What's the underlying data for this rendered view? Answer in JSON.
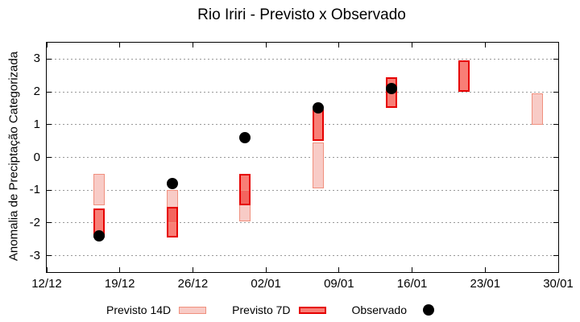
{
  "title": "Rio Iriri - Previsto x Observado",
  "legend": {
    "previsto_14d_label": "Previsto 14D",
    "previsto_7d_label": "Previsto 7D",
    "observado_label": "Observado"
  },
  "colors": {
    "p14_fill": "#f8cbc6",
    "p14_border": "#f0907e",
    "p7_fill": "#f87e76",
    "p7_border": "#e60000",
    "overlap_fill": "#f3655e",
    "observed": "#000000",
    "grid": "#999999",
    "frame": "#000000",
    "background": "#ffffff"
  },
  "chart_data": {
    "type": "bar",
    "title": "Rio Iriri - Previsto x Observado",
    "xlabel": "",
    "ylabel": "Anomalia de Preciptação Categorizada",
    "ylim": [
      -3.5,
      3.5
    ],
    "y_ticks": [
      3,
      2,
      1,
      0,
      -1,
      -2,
      -3
    ],
    "grid": "horizontal-dotted",
    "legend_position": "bottom",
    "x_range_days": [
      0,
      49
    ],
    "x_ticks": [
      {
        "label": "12/12",
        "day": 0
      },
      {
        "label": "19/12",
        "day": 7
      },
      {
        "label": "26/12",
        "day": 14
      },
      {
        "label": "02/01",
        "day": 21
      },
      {
        "label": "09/01",
        "day": 28
      },
      {
        "label": "16/01",
        "day": 35
      },
      {
        "label": "23/01",
        "day": 42
      },
      {
        "label": "30/01",
        "day": 49
      }
    ],
    "series_names": [
      "Previsto 14D",
      "Previsto 7D",
      "Observado"
    ],
    "bars": [
      {
        "date": "17/12",
        "day": 5,
        "previsto_14d": [
          -0.5,
          -1.45
        ],
        "previsto_7d": [
          -1.55,
          -2.45
        ],
        "observado": -2.4
      },
      {
        "date": "24/12",
        "day": 12,
        "previsto_14d": [
          -1.0,
          -2.0
        ],
        "previsto_7d": [
          -1.5,
          -2.45
        ],
        "observado": -0.8
      },
      {
        "date": "31/12",
        "day": 19,
        "previsto_14d": [
          -1.0,
          -1.95
        ],
        "previsto_7d": [
          -0.5,
          -1.45
        ],
        "observado": 0.6
      },
      {
        "date": "07/01",
        "day": 26,
        "previsto_14d": [
          0.45,
          -0.95
        ],
        "previsto_7d": [
          1.45,
          0.5
        ],
        "observado": 1.5
      },
      {
        "date": "14/01",
        "day": 33,
        "previsto_14d": null,
        "previsto_7d": [
          2.45,
          1.5
        ],
        "observado": 2.1
      },
      {
        "date": "21/01",
        "day": 40,
        "previsto_14d": null,
        "previsto_7d": [
          2.95,
          2.0
        ],
        "observado": null
      },
      {
        "date": "28/01",
        "day": 47,
        "previsto_14d": [
          1.95,
          1.0
        ],
        "previsto_7d": null,
        "observado": null
      }
    ]
  }
}
